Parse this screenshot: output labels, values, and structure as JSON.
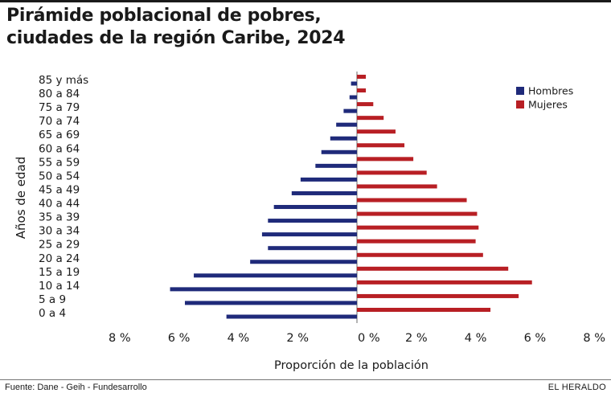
{
  "header": {
    "title_line1": "Pirámide poblacional de pobres,",
    "title_line2": "ciudades de la región Caribe, 2024"
  },
  "footer": {
    "source": "Fuente: Dane - Geih - Fundesarrollo",
    "brand": "EL HERALDO"
  },
  "colors": {
    "hombres": "#1f2a7a",
    "mujeres": "#b81f24"
  },
  "chart_data": {
    "type": "bar",
    "orientation": "horizontal-pyramid",
    "title": "Pirámide poblacional de pobres, ciudades de la región Caribe, 2024",
    "xlabel": "Proporción de la población",
    "ylabel": "Años de edad",
    "xlim": [
      -8,
      8
    ],
    "x_unit": "%",
    "x_ticks": [
      "8 %",
      "6 %",
      "4 %",
      "2 %",
      "0 %",
      "2 %",
      "4 %",
      "6 %",
      "8 %"
    ],
    "x_tick_values": [
      -8,
      -6,
      -4,
      -2,
      0,
      2,
      4,
      6,
      8
    ],
    "categories": [
      "0 a 4",
      "5 a 9",
      "10 a 14",
      "15 a 19",
      "20 a 24",
      "25 a 29",
      "30 a 34",
      "35 a 39",
      "40 a 44",
      "45 a 49",
      "50 a 54",
      "55 a 59",
      "60 a 64",
      "65 a 69",
      "70 a 74",
      "75 a 79",
      "80 a 84",
      "85 y más"
    ],
    "series": [
      {
        "name": "Hombres",
        "values": [
          4.4,
          5.8,
          6.3,
          5.5,
          3.6,
          3.0,
          3.2,
          3.0,
          2.8,
          2.2,
          1.9,
          1.4,
          1.2,
          0.9,
          0.7,
          0.45,
          0.25,
          0.2
        ]
      },
      {
        "name": "Mujeres",
        "values": [
          4.5,
          5.45,
          5.9,
          5.1,
          4.25,
          4.0,
          4.1,
          4.05,
          3.7,
          2.7,
          2.35,
          1.9,
          1.6,
          1.3,
          0.9,
          0.55,
          0.3,
          0.3
        ]
      }
    ],
    "legend": {
      "position": "top-right",
      "labels": [
        "Hombres",
        "Mujeres"
      ]
    },
    "grid": false
  }
}
